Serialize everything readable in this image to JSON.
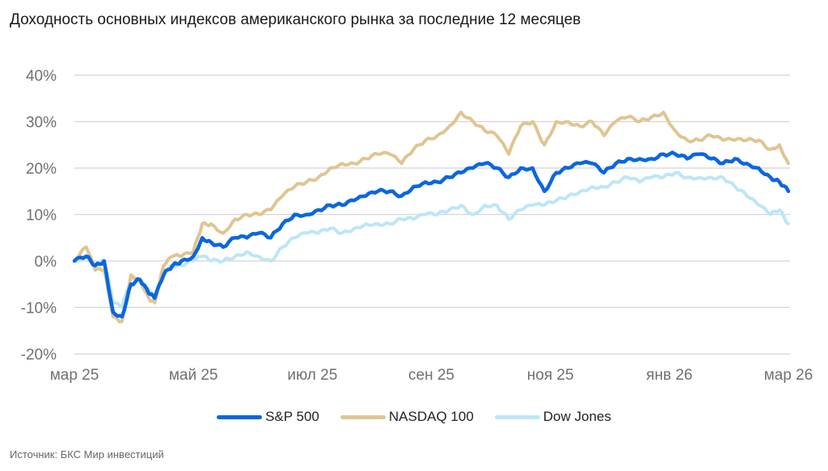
{
  "chart_data": {
    "type": "line",
    "title": "Доходность основных индексов американского рынка за последние 12 месяцев",
    "xlabel": "",
    "ylabel": "",
    "ylim": [
      -20,
      40
    ],
    "xlim": [
      0,
      12
    ],
    "yticks": [
      40,
      30,
      20,
      10,
      0,
      -10,
      -20
    ],
    "ytick_labels": [
      "40%",
      "30%",
      "20%",
      "10%",
      "0%",
      "-10%",
      "-20%"
    ],
    "xticks": [
      0,
      2,
      4,
      6,
      8,
      10,
      12
    ],
    "xtick_labels": [
      "мар 25",
      "май 25",
      "июл 25",
      "сен 25",
      "ноя 25",
      "янв 26",
      "мар 26"
    ],
    "grid": true,
    "legend_position": "bottom",
    "x": [
      0,
      0.2,
      0.35,
      0.5,
      0.65,
      0.8,
      0.95,
      1.1,
      1.25,
      1.35,
      1.5,
      1.65,
      1.8,
      2.0,
      2.15,
      2.3,
      2.5,
      2.7,
      2.9,
      3.1,
      3.3,
      3.5,
      3.7,
      3.9,
      4.1,
      4.3,
      4.5,
      4.7,
      4.9,
      5.1,
      5.3,
      5.5,
      5.7,
      5.9,
      6.1,
      6.3,
      6.5,
      6.7,
      6.9,
      7.1,
      7.3,
      7.5,
      7.7,
      7.9,
      8.1,
      8.3,
      8.5,
      8.7,
      8.9,
      9.1,
      9.3,
      9.5,
      9.7,
      9.9,
      10.1,
      10.3,
      10.5,
      10.7,
      10.9,
      11.1,
      11.3,
      11.5,
      11.7,
      11.85,
      12.0
    ],
    "series": [
      {
        "name": "S&P 500",
        "color": "#0a66e0",
        "values": [
          0,
          1,
          -1,
          0,
          -11,
          -12,
          -5,
          -4,
          -7,
          -8,
          -3,
          -1,
          0,
          1,
          5,
          4,
          3,
          5,
          5,
          6,
          5,
          8,
          10,
          10,
          11,
          12,
          12,
          13,
          14,
          15,
          15,
          14,
          16,
          17,
          17,
          18,
          19,
          20,
          21,
          20,
          18,
          20,
          20,
          15,
          19,
          20,
          21,
          21,
          19,
          21,
          22,
          22,
          22,
          23,
          23,
          22,
          23,
          22,
          21,
          22,
          21,
          20,
          18,
          17,
          15
        ]
      },
      {
        "name": "NASDAQ 100",
        "color": "#e0c592",
        "values": [
          0,
          3,
          -2,
          -2,
          -12,
          -13,
          -3,
          -4,
          -8,
          -9,
          -1,
          1,
          1,
          2,
          8,
          8,
          6,
          9,
          10,
          10,
          11,
          14,
          16,
          17,
          18,
          20,
          21,
          21,
          22,
          23,
          23,
          21,
          24,
          26,
          27,
          29,
          32,
          30,
          28,
          27,
          23,
          29,
          30,
          25,
          30,
          30,
          29,
          30,
          27,
          30,
          31,
          30,
          31,
          32,
          28,
          26,
          26,
          27,
          26,
          26,
          26,
          26,
          24,
          25,
          21
        ]
      },
      {
        "name": "Dow Jones",
        "color": "#bde6f7",
        "values": [
          0,
          1,
          -1,
          0,
          -9,
          -10,
          -4,
          -4,
          -6,
          -8,
          -2,
          -1,
          -1,
          0,
          1,
          0,
          0,
          1,
          2,
          1,
          0,
          3,
          5,
          6,
          6,
          7,
          6,
          7,
          8,
          8,
          8,
          9,
          9,
          10,
          10,
          11,
          12,
          10,
          12,
          12,
          9,
          11,
          12,
          12,
          13,
          14,
          15,
          16,
          16,
          17,
          18,
          17,
          18,
          18,
          19,
          18,
          18,
          18,
          18,
          16,
          14,
          12,
          10,
          11,
          8
        ]
      }
    ]
  },
  "legend": {
    "items": [
      {
        "label": "S&P 500",
        "color": "#0a66e0"
      },
      {
        "label": "NASDAQ 100",
        "color": "#e0c592"
      },
      {
        "label": "Dow Jones",
        "color": "#bde6f7"
      }
    ]
  },
  "source": "Источник: БКС Мир инвестиций",
  "colors": {
    "grid": "#d4d4d4",
    "tick_text": "#707070"
  }
}
